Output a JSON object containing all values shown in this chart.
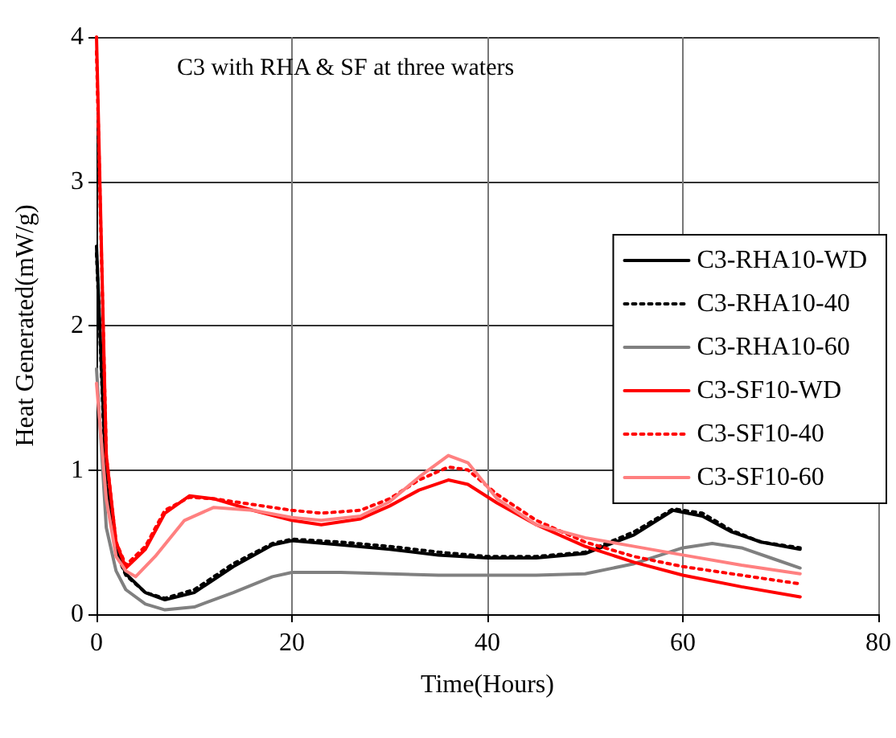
{
  "chart_data": {
    "type": "line",
    "title": "C3 with RHA & SF at three waters",
    "xlabel": "Time(Hours)",
    "ylabel": "Heat Generated(mW/g)",
    "xlim": [
      0,
      80
    ],
    "xticks": [
      0,
      20,
      40,
      60,
      80
    ],
    "ylim": [
      0,
      4
    ],
    "yticks": [
      0,
      1,
      2,
      3,
      4
    ],
    "grid": true,
    "legend": "right",
    "marker": "none",
    "series": [
      {
        "name": "C3-RHA10-WD",
        "color": "#000000",
        "line_style": "solid",
        "x": [
          0,
          1,
          2,
          3,
          5,
          7,
          10,
          14,
          18,
          20,
          25,
          30,
          35,
          40,
          45,
          50,
          55,
          59,
          62,
          65,
          68,
          72
        ],
        "values": [
          2.55,
          0.9,
          0.45,
          0.28,
          0.15,
          0.1,
          0.15,
          0.33,
          0.48,
          0.51,
          0.48,
          0.45,
          0.41,
          0.39,
          0.39,
          0.42,
          0.55,
          0.72,
          0.68,
          0.57,
          0.5,
          0.45
        ]
      },
      {
        "name": "C3-RHA10-40",
        "color": "#000000",
        "line_style": "dotted",
        "x": [
          0,
          1,
          2,
          3,
          5,
          7,
          10,
          14,
          18,
          20,
          25,
          30,
          35,
          40,
          45,
          50,
          55,
          59,
          62,
          65,
          68,
          72
        ],
        "values": [
          2.5,
          0.85,
          0.43,
          0.27,
          0.15,
          0.11,
          0.17,
          0.35,
          0.49,
          0.52,
          0.5,
          0.47,
          0.43,
          0.4,
          0.4,
          0.43,
          0.57,
          0.73,
          0.7,
          0.58,
          0.5,
          0.46
        ]
      },
      {
        "name": "C3-RHA10-60",
        "color": "#808080",
        "line_style": "solid",
        "x": [
          0,
          1,
          2,
          3,
          5,
          7,
          10,
          14,
          18,
          20,
          25,
          30,
          35,
          40,
          45,
          50,
          55,
          60,
          63,
          66,
          69,
          72
        ],
        "values": [
          1.7,
          0.6,
          0.3,
          0.17,
          0.07,
          0.03,
          0.05,
          0.15,
          0.26,
          0.29,
          0.29,
          0.28,
          0.27,
          0.27,
          0.27,
          0.28,
          0.35,
          0.46,
          0.49,
          0.46,
          0.39,
          0.32
        ]
      },
      {
        "name": "C3-SF10-WD",
        "color": "#ff0000",
        "line_style": "solid",
        "x": [
          0,
          1,
          2,
          3,
          5,
          7,
          9.5,
          12,
          16,
          20,
          23,
          27,
          30,
          33,
          36,
          38,
          41,
          45,
          50,
          55,
          60,
          66,
          72
        ],
        "values": [
          4,
          1.1,
          0.5,
          0.32,
          0.45,
          0.7,
          0.82,
          0.8,
          0.72,
          0.65,
          0.62,
          0.66,
          0.75,
          0.86,
          0.93,
          0.9,
          0.77,
          0.62,
          0.47,
          0.36,
          0.27,
          0.19,
          0.12
        ]
      },
      {
        "name": "C3-SF10-40",
        "color": "#ff0000",
        "line_style": "dotted",
        "x": [
          0,
          1,
          2,
          3,
          5,
          7,
          9.5,
          12,
          16,
          20,
          23,
          27,
          30,
          33,
          36,
          38,
          41,
          45,
          50,
          55,
          60,
          66,
          72
        ],
        "values": [
          3.9,
          1.1,
          0.5,
          0.34,
          0.47,
          0.72,
          0.81,
          0.8,
          0.76,
          0.72,
          0.7,
          0.72,
          0.8,
          0.93,
          1.02,
          1.0,
          0.83,
          0.65,
          0.5,
          0.4,
          0.33,
          0.27,
          0.21
        ]
      },
      {
        "name": "C3-SF10-60",
        "color": "#ff8080",
        "line_style": "solid",
        "x": [
          0,
          1,
          2,
          3,
          4,
          6,
          9,
          12,
          16,
          20,
          23,
          27,
          30,
          33,
          36,
          38,
          41,
          45,
          50,
          55,
          60,
          66,
          72
        ],
        "values": [
          1.6,
          0.8,
          0.4,
          0.3,
          0.26,
          0.4,
          0.65,
          0.74,
          0.72,
          0.67,
          0.65,
          0.68,
          0.78,
          0.95,
          1.1,
          1.05,
          0.8,
          0.62,
          0.53,
          0.47,
          0.41,
          0.34,
          0.28
        ]
      }
    ]
  }
}
